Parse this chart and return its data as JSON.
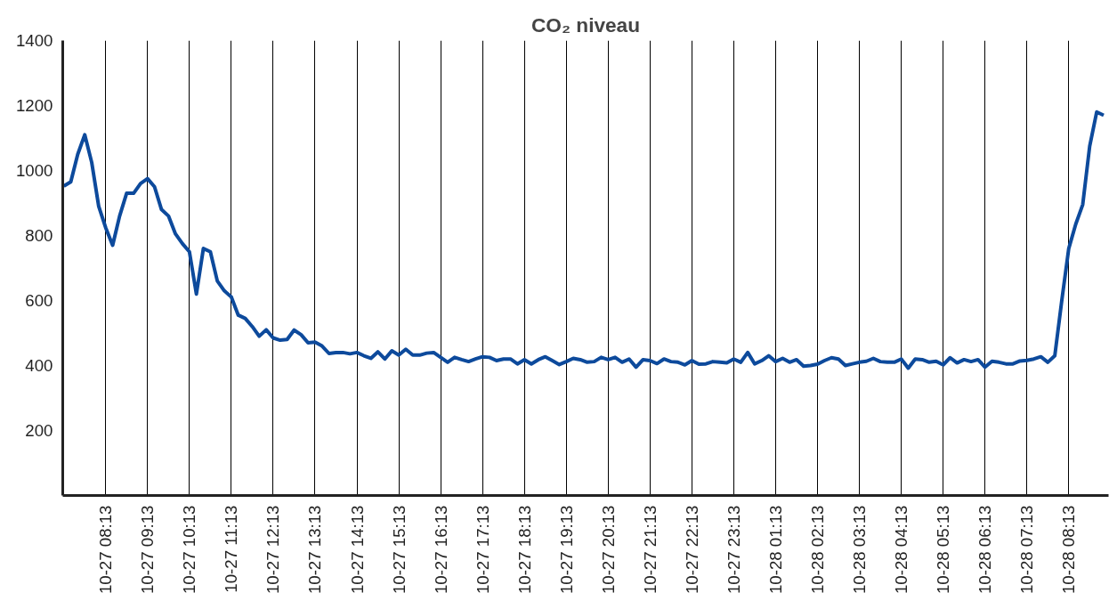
{
  "chart_data": {
    "type": "line",
    "title": "CO₂ niveau",
    "ylim": [
      0,
      1400
    ],
    "yticks": [
      200,
      400,
      600,
      800,
      1000,
      1200,
      1400
    ],
    "grid": "x",
    "categories": [
      null,
      null,
      null,
      null,
      null,
      null,
      "10-27 08:13",
      null,
      null,
      null,
      null,
      null,
      "10-27 09:13",
      null,
      null,
      null,
      null,
      null,
      "10-27 10:13",
      null,
      null,
      null,
      null,
      null,
      "10-27 11:13",
      null,
      null,
      null,
      null,
      null,
      "10-27 12:13",
      null,
      null,
      null,
      null,
      null,
      "10-27 13:13",
      null,
      null,
      null,
      null,
      null,
      "10-27 14:13",
      null,
      null,
      null,
      null,
      null,
      "10-27 15:13",
      null,
      null,
      null,
      null,
      null,
      "10-27 16:13",
      null,
      null,
      null,
      null,
      null,
      "10-27 17:13",
      null,
      null,
      null,
      null,
      null,
      "10-27 18:13",
      null,
      null,
      null,
      null,
      null,
      "10-27 19:13",
      null,
      null,
      null,
      null,
      null,
      "10-27 20:13",
      null,
      null,
      null,
      null,
      null,
      "10-27 21:13",
      null,
      null,
      null,
      null,
      null,
      "10-27 22:13",
      null,
      null,
      null,
      null,
      null,
      "10-27 23:13",
      null,
      null,
      null,
      null,
      null,
      "10-28 01:13",
      null,
      null,
      null,
      null,
      null,
      "10-28 02:13",
      null,
      null,
      null,
      null,
      null,
      "10-28 03:13",
      null,
      null,
      null,
      null,
      null,
      "10-28 04:13",
      null,
      null,
      null,
      null,
      null,
      "10-28 05:13",
      null,
      null,
      null,
      null,
      null,
      "10-28 06:13",
      null,
      null,
      null,
      null,
      null,
      "10-28 07:13",
      null,
      null,
      null,
      null,
      null,
      "10-28 08:13",
      null,
      null,
      null,
      null,
      null
    ],
    "series": [
      {
        "color": "#0d4a9c",
        "values": [
          952,
          965,
          1050,
          1110,
          1025,
          890,
          824,
          770,
          860,
          930,
          930,
          960,
          975,
          950,
          880,
          860,
          805,
          775,
          750,
          620,
          760,
          750,
          660,
          630,
          611,
          555,
          545,
          520,
          490,
          510,
          485,
          478,
          480,
          509,
          495,
          470,
          472,
          460,
          437,
          440,
          440,
          436,
          440,
          430,
          422,
          442,
          420,
          445,
          432,
          450,
          432,
          432,
          438,
          440,
          425,
          410,
          425,
          418,
          412,
          420,
          427,
          425,
          415,
          420,
          420,
          405,
          418,
          405,
          418,
          427,
          415,
          403,
          412,
          422,
          418,
          410,
          412,
          425,
          418,
          425,
          410,
          420,
          395,
          418,
          415,
          406,
          420,
          412,
          410,
          402,
          415,
          404,
          405,
          412,
          410,
          408,
          420,
          410,
          440,
          405,
          415,
          430,
          412,
          422,
          410,
          418,
          398,
          400,
          404,
          415,
          424,
          420,
          400,
          405,
          410,
          413,
          422,
          412,
          410,
          410,
          420,
          392,
          420,
          418,
          410,
          413,
          402,
          424,
          408,
          418,
          412,
          418,
          395,
          413,
          410,
          405,
          405,
          414,
          416,
          420,
          427,
          410,
          430,
          600,
          760,
          835,
          895,
          1075,
          1180,
          1170
        ]
      }
    ]
  }
}
